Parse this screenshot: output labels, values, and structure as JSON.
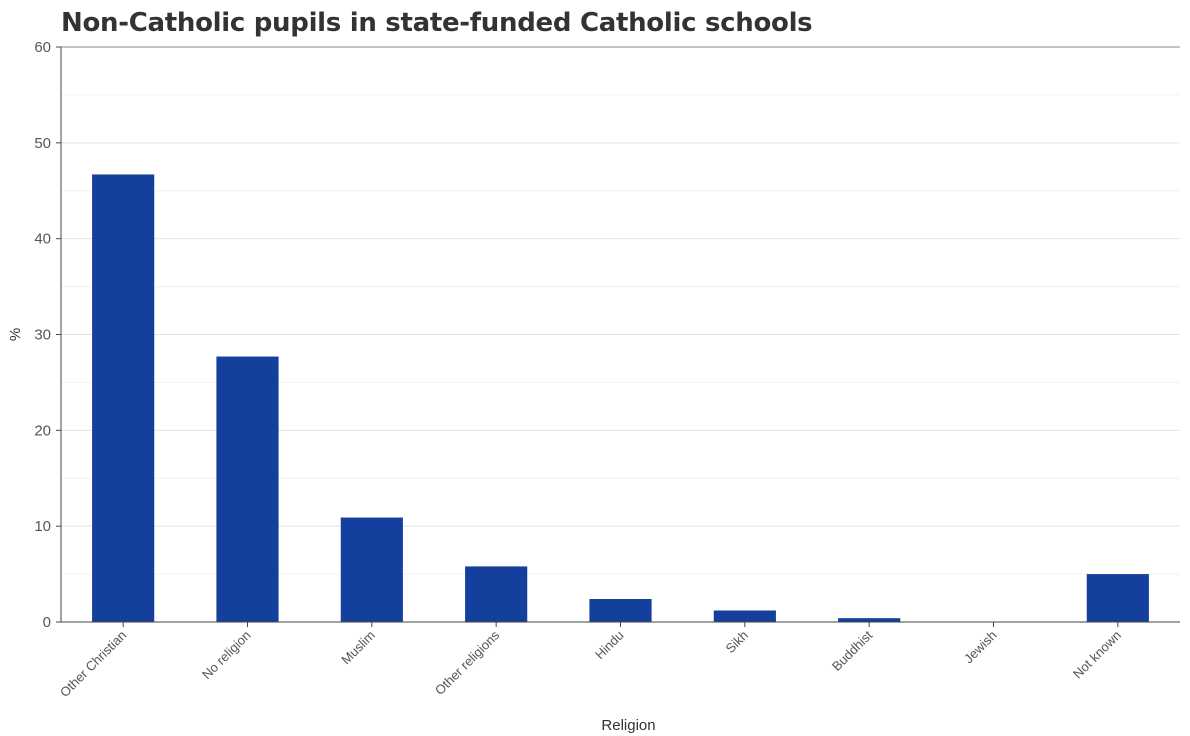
{
  "chart_data": {
    "type": "bar",
    "title": "Non-Catholic pupils in state-funded Catholic schools",
    "xlabel": "Religion",
    "ylabel": "%",
    "categories": [
      "Other Christian",
      "No religion",
      "Muslim",
      "Other religions",
      "Hindu",
      "Sikh",
      "Buddhist",
      "Jewish",
      "Not known"
    ],
    "values": [
      46.7,
      27.7,
      10.9,
      5.8,
      2.4,
      1.2,
      0.4,
      0.05,
      5.0
    ],
    "ylim": [
      0,
      60
    ],
    "yticks": [
      0,
      10,
      20,
      30,
      40,
      50,
      60
    ],
    "grid": true,
    "bar_color": "#153f9d"
  }
}
